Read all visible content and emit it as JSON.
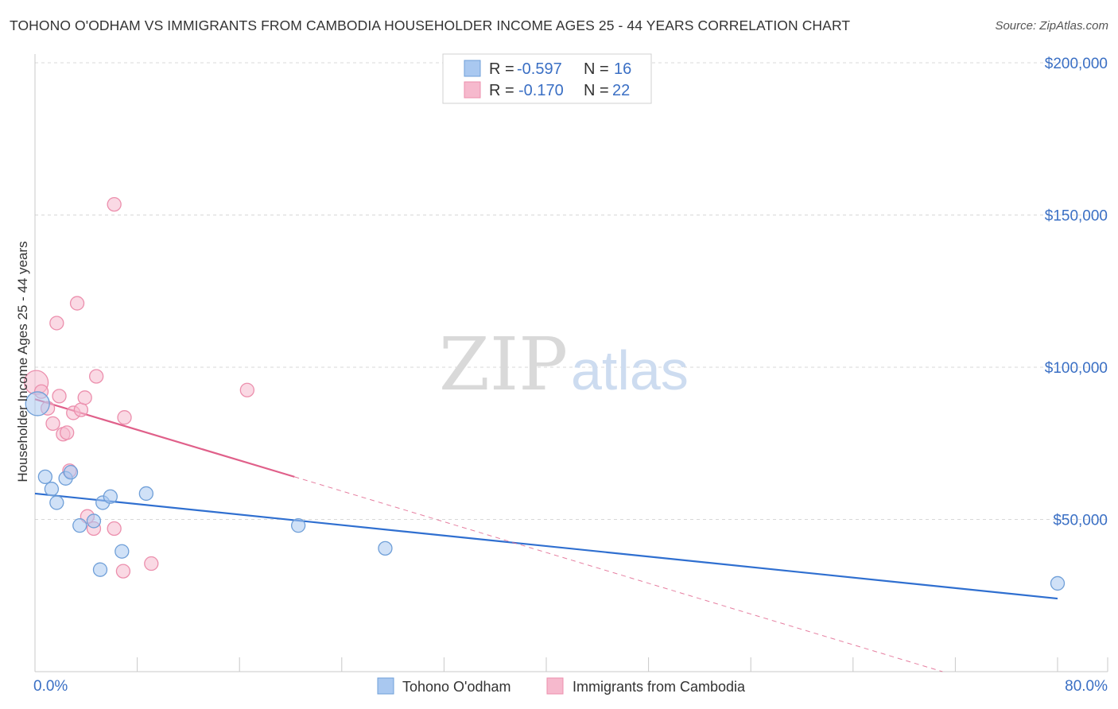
{
  "title": "TOHONO O'ODHAM VS IMMIGRANTS FROM CAMBODIA HOUSEHOLDER INCOME AGES 25 - 44 YEARS CORRELATION CHART",
  "source": "Source: ZipAtlas.com",
  "watermark": {
    "zip": "ZIP",
    "atlas": "atlas"
  },
  "legend": {
    "r_label": "R =",
    "n_label": "N =",
    "entries": [
      {
        "r": "-0.597",
        "n": "16"
      },
      {
        "r": "-0.170",
        "n": "22"
      }
    ]
  },
  "colors": {
    "tohono_fill": "#a9c8f0",
    "tohono_stroke": "#6f9fd8",
    "tohono_line": "#2f6fd0",
    "cambodia_fill": "#f6b9cd",
    "cambodia_stroke": "#ec8fad",
    "cambodia_line": "#e0608a",
    "grid": "#d8d8d8",
    "axis_text": "#3a6fc4"
  },
  "chart_data": {
    "type": "scatter",
    "title": "TOHONO O'ODHAM VS IMMIGRANTS FROM CAMBODIA HOUSEHOLDER INCOME AGES 25 - 44 YEARS CORRELATION CHART",
    "xlabel": "",
    "ylabel": "Householder Income Ages 25 - 44 years",
    "xlim": [
      0,
      80
    ],
    "ylim": [
      0,
      205000
    ],
    "x_tick_labels": {
      "min": "0.0%",
      "max": "80.0%"
    },
    "y_ticks": [
      {
        "value": 50000,
        "label": "$50,000"
      },
      {
        "value": 100000,
        "label": "$100,000"
      },
      {
        "value": 150000,
        "label": "$150,000"
      },
      {
        "value": 200000,
        "label": "$200,000"
      }
    ],
    "grid": true,
    "legend_position": "top-center",
    "series": [
      {
        "name": "Tohono O'odham",
        "r": -0.597,
        "n": 16,
        "points": [
          {
            "x": 0.2,
            "y": 88000,
            "size": "large"
          },
          {
            "x": 0.8,
            "y": 64000
          },
          {
            "x": 1.3,
            "y": 60000
          },
          {
            "x": 1.7,
            "y": 55500
          },
          {
            "x": 2.4,
            "y": 63500
          },
          {
            "x": 2.8,
            "y": 65500
          },
          {
            "x": 3.5,
            "y": 48000
          },
          {
            "x": 4.6,
            "y": 49500
          },
          {
            "x": 5.1,
            "y": 33500
          },
          {
            "x": 5.3,
            "y": 55500
          },
          {
            "x": 5.9,
            "y": 57500
          },
          {
            "x": 6.8,
            "y": 39500
          },
          {
            "x": 8.7,
            "y": 58500
          },
          {
            "x": 20.6,
            "y": 48000
          },
          {
            "x": 27.4,
            "y": 40500
          },
          {
            "x": 80.0,
            "y": 29000
          }
        ],
        "trend": {
          "x_start": 0,
          "y_start": 58500,
          "x_end": 80,
          "y_end": 24000
        }
      },
      {
        "name": "Immigrants from Cambodia",
        "r": -0.17,
        "n": 22,
        "points": [
          {
            "x": 0.1,
            "y": 95000,
            "size": "large"
          },
          {
            "x": 0.5,
            "y": 92000
          },
          {
            "x": 1.0,
            "y": 86500
          },
          {
            "x": 1.4,
            "y": 81500
          },
          {
            "x": 1.7,
            "y": 114500
          },
          {
            "x": 1.9,
            "y": 90500
          },
          {
            "x": 2.2,
            "y": 78000
          },
          {
            "x": 2.5,
            "y": 78500
          },
          {
            "x": 2.7,
            "y": 66000
          },
          {
            "x": 3.0,
            "y": 85000
          },
          {
            "x": 3.3,
            "y": 121000
          },
          {
            "x": 3.6,
            "y": 86000
          },
          {
            "x": 3.9,
            "y": 90000
          },
          {
            "x": 4.1,
            "y": 51000
          },
          {
            "x": 4.6,
            "y": 47000
          },
          {
            "x": 4.8,
            "y": 97000
          },
          {
            "x": 6.2,
            "y": 47000
          },
          {
            "x": 6.9,
            "y": 33000
          },
          {
            "x": 7.0,
            "y": 83500
          },
          {
            "x": 6.2,
            "y": 153500
          },
          {
            "x": 9.1,
            "y": 35500
          },
          {
            "x": 16.6,
            "y": 92500
          }
        ],
        "trend": {
          "x_start": 0,
          "y_start": 89500,
          "x_end": 20.3,
          "y_end": 64000,
          "dash_x_end": 71,
          "dash_y_end": 0
        }
      }
    ]
  },
  "bottom_legend": [
    {
      "label": "Tohono O'odham"
    },
    {
      "label": "Immigrants from Cambodia"
    }
  ]
}
